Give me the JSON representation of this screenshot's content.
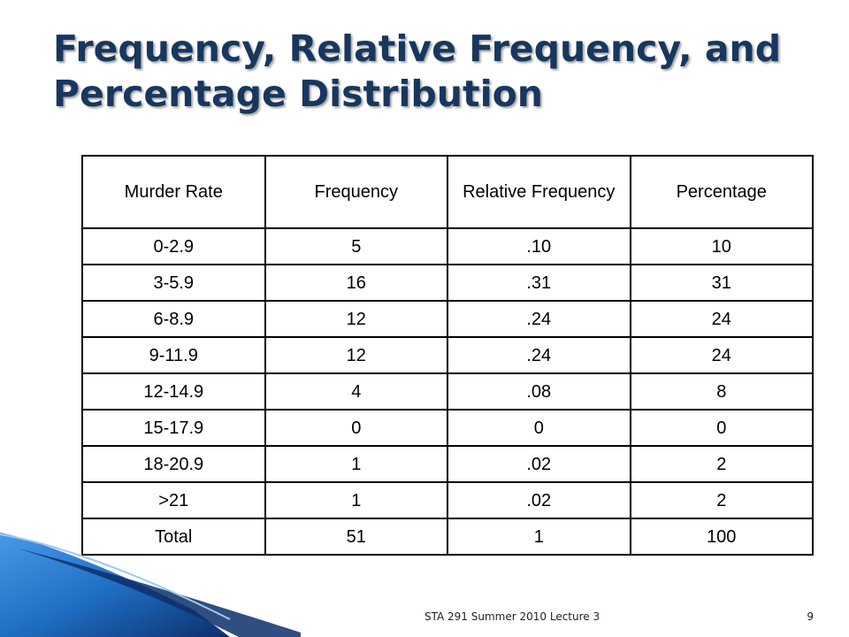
{
  "slide": {
    "title": "Frequency, Relative Frequency, and Percentage Distribution",
    "footer": "STA 291 Summer 2010 Lecture 3",
    "page_number": "9"
  },
  "table": {
    "headers": [
      "Murder Rate",
      "Frequency",
      "Relative Frequency",
      "Percentage"
    ],
    "rows": [
      [
        "0-2.9",
        "5",
        ".10",
        "10"
      ],
      [
        "3-5.9",
        "16",
        ".31",
        "31"
      ],
      [
        "6-8.9",
        "12",
        ".24",
        "24"
      ],
      [
        "9-11.9",
        "12",
        ".24",
        "24"
      ],
      [
        "12-14.9",
        "4",
        ".08",
        "8"
      ],
      [
        "15-17.9",
        "0",
        "0",
        "0"
      ],
      [
        "18-20.9",
        "1",
        ".02",
        "2"
      ],
      [
        ">21",
        "1",
        ".02",
        "2"
      ],
      [
        "Total",
        "51",
        "1",
        "100"
      ]
    ]
  },
  "colors": {
    "title": "#17375e",
    "decor_blue": "#1f6fc5",
    "decor_dark": "#0d2f6b"
  }
}
